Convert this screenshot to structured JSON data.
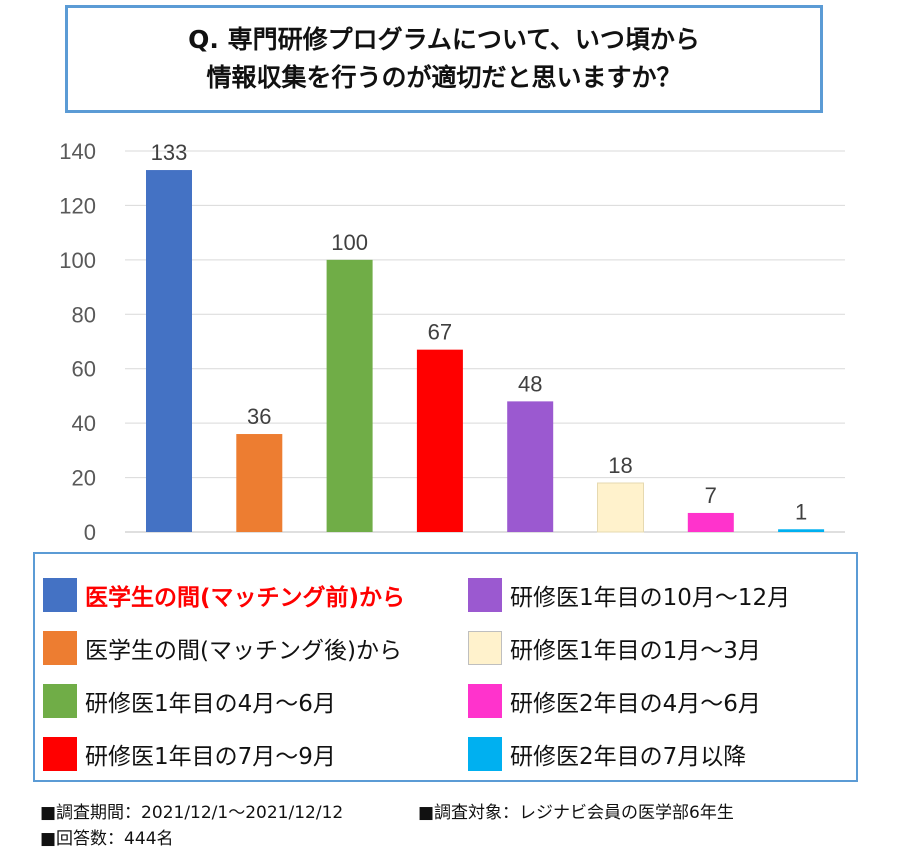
{
  "chart_data": {
    "type": "bar",
    "title_lines": [
      "Q.  専門研修プログラムについて、いつ頃から",
      "情報収集を行うのが適切だと思いますか？"
    ],
    "categories": [
      "医学生の間(マッチング前)から",
      "医学生の間(マッチング後)から",
      "研修医1年目の4月～6月",
      "研修医1年目の7月～9月",
      "研修医1年目の10月～12月",
      "研修医1年目の1月～3月",
      "研修医2年目の4月～6月",
      "研修医2年目の7月以降"
    ],
    "values": [
      133,
      36,
      100,
      67,
      48,
      18,
      7,
      1
    ],
    "colors": [
      "#4472c4",
      "#ed7d31",
      "#70ad47",
      "#ff0000",
      "#9b59d0",
      "#fff2cc",
      "#ff33cc",
      "#00b0f0"
    ],
    "highlight_index": 0,
    "ylim": [
      0,
      140
    ],
    "yticks": [
      0,
      20,
      40,
      60,
      80,
      100,
      120,
      140
    ],
    "grid": true,
    "legend_placement": "bottom",
    "xlabel": "",
    "ylabel": ""
  },
  "footer": {
    "period": "■調査期間：2021/12/1～2021/12/12",
    "target": "■調査対象：レジナビ会員の医学部6年生",
    "responses": "■回答数：444名"
  }
}
